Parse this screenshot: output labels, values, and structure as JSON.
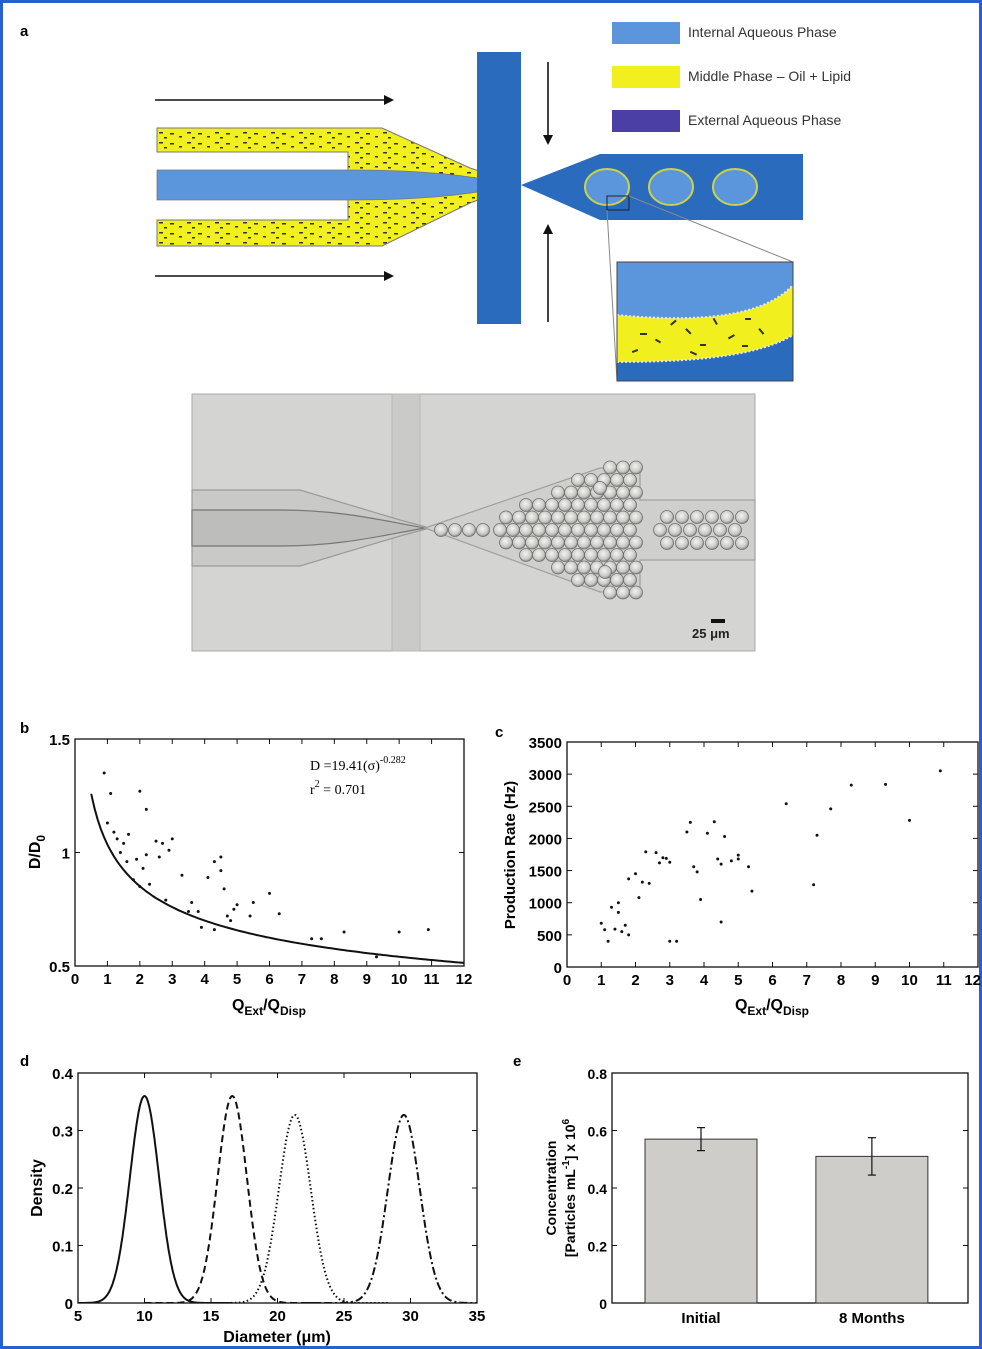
{
  "colors": {
    "internal": "#5b95dc",
    "middle": "#f2ef1e",
    "external": "#2a6bbd",
    "legend_external": "#4b3fa5",
    "bar": "#cfcdca",
    "border": "#2a5fd1"
  },
  "panel_a": {
    "letter": "a",
    "legend": [
      {
        "label": "Internal Aqueous Phase",
        "color": "#5b95dc"
      },
      {
        "label": "Middle Phase – Oil + Lipid",
        "color": "#f2ef1e"
      },
      {
        "label": "External Aqueous Phase",
        "color": "#4b3fa5"
      }
    ],
    "scale_bar_label": "25 μm"
  },
  "chart_data": [
    {
      "panel": "b",
      "type": "scatter",
      "xlabel_main": "Q",
      "xlabel_sub1": "Ext",
      "xlabel_mid": "/Q",
      "xlabel_sub2": "Disp",
      "ylabel_main": "D/D",
      "ylabel_sub": "0",
      "xlim": [
        0,
        12
      ],
      "ylim": [
        0.5,
        1.5
      ],
      "xticks": [
        "0",
        "1",
        "2",
        "3",
        "4",
        "5",
        "6",
        "7",
        "8",
        "9",
        "10",
        "11",
        "12"
      ],
      "yticks": [
        "0.5",
        "1",
        "1.5"
      ],
      "annotation_eq": "D =19.41(σ)",
      "annotation_exp": "-0.282",
      "annotation_r": "r",
      "annotation_r_sup": "2",
      "annotation_r_val": " = 0.701",
      "fit_curve": {
        "a": 1.035,
        "b": -0.282
      },
      "points": [
        [
          0.9,
          1.35
        ],
        [
          1.0,
          1.13
        ],
        [
          1.1,
          1.26
        ],
        [
          1.2,
          1.09
        ],
        [
          1.3,
          1.06
        ],
        [
          1.4,
          1.0
        ],
        [
          1.5,
          1.04
        ],
        [
          1.6,
          0.96
        ],
        [
          1.65,
          1.08
        ],
        [
          1.8,
          0.88
        ],
        [
          1.9,
          0.97
        ],
        [
          2.0,
          1.27
        ],
        [
          2.0,
          0.85
        ],
        [
          2.1,
          0.93
        ],
        [
          2.2,
          1.19
        ],
        [
          2.2,
          0.99
        ],
        [
          2.3,
          0.86
        ],
        [
          2.5,
          1.05
        ],
        [
          2.6,
          0.98
        ],
        [
          2.7,
          1.04
        ],
        [
          2.8,
          0.79
        ],
        [
          2.9,
          1.01
        ],
        [
          3.0,
          1.06
        ],
        [
          3.3,
          0.9
        ],
        [
          3.5,
          0.74
        ],
        [
          3.6,
          0.78
        ],
        [
          3.8,
          0.74
        ],
        [
          3.9,
          0.67
        ],
        [
          4.1,
          0.89
        ],
        [
          4.3,
          0.66
        ],
        [
          4.3,
          0.96
        ],
        [
          4.5,
          0.98
        ],
        [
          4.5,
          0.92
        ],
        [
          4.6,
          0.84
        ],
        [
          4.7,
          0.72
        ],
        [
          4.8,
          0.7
        ],
        [
          4.9,
          0.75
        ],
        [
          5.0,
          0.77
        ],
        [
          5.4,
          0.72
        ],
        [
          5.5,
          0.78
        ],
        [
          6.0,
          0.82
        ],
        [
          6.3,
          0.73
        ],
        [
          7.3,
          0.62
        ],
        [
          7.6,
          0.62
        ],
        [
          8.3,
          0.65
        ],
        [
          9.3,
          0.54
        ],
        [
          10.0,
          0.65
        ],
        [
          10.9,
          0.66
        ]
      ]
    },
    {
      "panel": "c",
      "type": "scatter",
      "xlabel_main": "Q",
      "xlabel_sub1": "Ext",
      "xlabel_mid": "/Q",
      "xlabel_sub2": "Disp",
      "ylabel": "Production Rate (Hz)",
      "xlim": [
        0,
        12
      ],
      "ylim": [
        0,
        3500
      ],
      "xticks": [
        "0",
        "1",
        "2",
        "3",
        "4",
        "5",
        "6",
        "7",
        "8",
        "9",
        "10",
        "11",
        "12"
      ],
      "yticks": [
        "0",
        "500",
        "1000",
        "1500",
        "2000",
        "2500",
        "3000",
        "3500"
      ],
      "points": [
        [
          1.0,
          680
        ],
        [
          1.1,
          580
        ],
        [
          1.2,
          400
        ],
        [
          1.3,
          930
        ],
        [
          1.4,
          590
        ],
        [
          1.5,
          850
        ],
        [
          1.5,
          1000
        ],
        [
          1.6,
          550
        ],
        [
          1.7,
          650
        ],
        [
          1.8,
          500
        ],
        [
          1.8,
          1370
        ],
        [
          2.0,
          1450
        ],
        [
          2.1,
          1080
        ],
        [
          2.2,
          1320
        ],
        [
          2.3,
          1790
        ],
        [
          2.4,
          1300
        ],
        [
          2.6,
          1780
        ],
        [
          2.7,
          1620
        ],
        [
          2.8,
          1700
        ],
        [
          2.9,
          1690
        ],
        [
          3.0,
          1630
        ],
        [
          3.0,
          400
        ],
        [
          3.2,
          400
        ],
        [
          3.5,
          2100
        ],
        [
          3.6,
          2250
        ],
        [
          3.7,
          1560
        ],
        [
          3.8,
          1480
        ],
        [
          3.9,
          1050
        ],
        [
          4.1,
          2080
        ],
        [
          4.3,
          2260
        ],
        [
          4.4,
          1680
        ],
        [
          4.5,
          1600
        ],
        [
          4.5,
          700
        ],
        [
          4.6,
          2030
        ],
        [
          4.8,
          1650
        ],
        [
          5.0,
          1740
        ],
        [
          5.0,
          1680
        ],
        [
          5.3,
          1560
        ],
        [
          5.4,
          1180
        ],
        [
          6.4,
          2540
        ],
        [
          7.2,
          1280
        ],
        [
          7.3,
          2050
        ],
        [
          7.7,
          2460
        ],
        [
          8.3,
          2830
        ],
        [
          9.3,
          2840
        ],
        [
          10.0,
          2280
        ],
        [
          10.9,
          3050
        ]
      ]
    },
    {
      "panel": "d",
      "type": "line",
      "xlabel": "Diameter (μm)",
      "ylabel": "Density",
      "xlim": [
        5,
        35
      ],
      "ylim": [
        0,
        0.4
      ],
      "xticks": [
        "5",
        "10",
        "15",
        "20",
        "25",
        "30",
        "35"
      ],
      "yticks": [
        "0",
        "0.1",
        "0.2",
        "0.3",
        "0.4"
      ],
      "series": [
        {
          "mean": 10.0,
          "sd": 1.1,
          "peak": 0.36,
          "style": "solid"
        },
        {
          "mean": 16.6,
          "sd": 1.1,
          "peak": 0.36,
          "style": "dashed"
        },
        {
          "mean": 21.3,
          "sd": 1.2,
          "peak": 0.327,
          "style": "dotted"
        },
        {
          "mean": 29.5,
          "sd": 1.2,
          "peak": 0.327,
          "style": "dashdot"
        }
      ]
    },
    {
      "panel": "e",
      "type": "bar",
      "ylabel_line1": "Concentration",
      "ylabel_line2_pre": "[Particles mL",
      "ylabel_line2_sup": "-1",
      "ylabel_line2_post": "] x 10",
      "ylabel_line2_exp": "6",
      "categories": [
        "Initial",
        "8 Months"
      ],
      "values": [
        0.57,
        0.51
      ],
      "errors": [
        0.04,
        0.065
      ],
      "ylim": [
        0,
        0.8
      ],
      "yticks": [
        "0",
        "0.2",
        "0.4",
        "0.6",
        "0.8"
      ]
    }
  ]
}
